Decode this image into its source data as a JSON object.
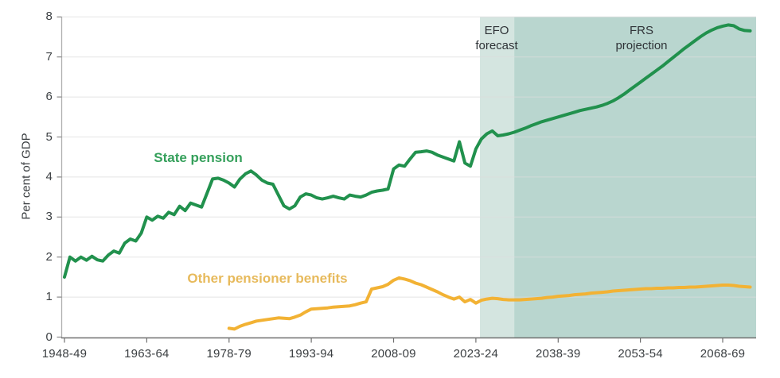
{
  "chart_data": {
    "type": "line",
    "ylabel": "Per cent of GDP",
    "ylim": [
      0,
      8
    ],
    "y_ticks": [
      0,
      1,
      2,
      3,
      4,
      5,
      6,
      7,
      8
    ],
    "x_ticks": [
      {
        "year": 1948,
        "label": "1948-49"
      },
      {
        "year": 1963,
        "label": "1963-64"
      },
      {
        "year": 1978,
        "label": "1978-79"
      },
      {
        "year": 1993,
        "label": "1993-94"
      },
      {
        "year": 2008,
        "label": "2008-09"
      },
      {
        "year": 2023,
        "label": "2023-24"
      },
      {
        "year": 2038,
        "label": "2038-39"
      },
      {
        "year": 2053,
        "label": "2053-54"
      },
      {
        "year": 2068,
        "label": "2068-69"
      }
    ],
    "x_range": [
      1948,
      2074.1
    ],
    "grid": "horizontal",
    "legend_position": "inline-labels",
    "bands": [
      {
        "name": "efo-forecast-band",
        "label": "EFO forecast",
        "start_year": 2023.75,
        "end_year": 2030,
        "color": "#d4e5e0"
      },
      {
        "name": "frs-projection-band",
        "label": "FRS projection",
        "start_year": 2030,
        "end_year": 2074.1,
        "color": "#b9d6cf"
      }
    ],
    "series": [
      {
        "name": "State pension",
        "color": "#21914d",
        "points": [
          [
            1948,
            1.5
          ],
          [
            1949,
            2.0
          ],
          [
            1950,
            1.9
          ],
          [
            1951,
            2.0
          ],
          [
            1952,
            1.92
          ],
          [
            1953,
            2.02
          ],
          [
            1954,
            1.93
          ],
          [
            1955,
            1.9
          ],
          [
            1956,
            2.05
          ],
          [
            1957,
            2.15
          ],
          [
            1958,
            2.1
          ],
          [
            1959,
            2.35
          ],
          [
            1960,
            2.45
          ],
          [
            1961,
            2.4
          ],
          [
            1962,
            2.6
          ],
          [
            1963,
            3.0
          ],
          [
            1964,
            2.92
          ],
          [
            1965,
            3.02
          ],
          [
            1966,
            2.97
          ],
          [
            1967,
            3.12
          ],
          [
            1968,
            3.06
          ],
          [
            1969,
            3.27
          ],
          [
            1970,
            3.16
          ],
          [
            1971,
            3.35
          ],
          [
            1972,
            3.3
          ],
          [
            1973,
            3.25
          ],
          [
            1974,
            3.6
          ],
          [
            1975,
            3.95
          ],
          [
            1976,
            3.97
          ],
          [
            1977,
            3.92
          ],
          [
            1978,
            3.85
          ],
          [
            1979,
            3.75
          ],
          [
            1980,
            3.95
          ],
          [
            1981,
            4.08
          ],
          [
            1982,
            4.15
          ],
          [
            1983,
            4.05
          ],
          [
            1984,
            3.92
          ],
          [
            1985,
            3.85
          ],
          [
            1986,
            3.82
          ],
          [
            1987,
            3.55
          ],
          [
            1988,
            3.28
          ],
          [
            1989,
            3.2
          ],
          [
            1990,
            3.28
          ],
          [
            1991,
            3.5
          ],
          [
            1992,
            3.58
          ],
          [
            1993,
            3.55
          ],
          [
            1994,
            3.48
          ],
          [
            1995,
            3.45
          ],
          [
            1996,
            3.48
          ],
          [
            1997,
            3.52
          ],
          [
            1998,
            3.48
          ],
          [
            1999,
            3.45
          ],
          [
            2000,
            3.55
          ],
          [
            2001,
            3.52
          ],
          [
            2002,
            3.5
          ],
          [
            2003,
            3.55
          ],
          [
            2004,
            3.62
          ],
          [
            2005,
            3.65
          ],
          [
            2006,
            3.67
          ],
          [
            2007,
            3.7
          ],
          [
            2008,
            4.2
          ],
          [
            2009,
            4.3
          ],
          [
            2010,
            4.27
          ],
          [
            2011,
            4.45
          ],
          [
            2012,
            4.62
          ],
          [
            2013,
            4.63
          ],
          [
            2014,
            4.65
          ],
          [
            2015,
            4.62
          ],
          [
            2016,
            4.55
          ],
          [
            2017,
            4.5
          ],
          [
            2018,
            4.45
          ],
          [
            2019,
            4.4
          ],
          [
            2020,
            4.88
          ],
          [
            2021,
            4.35
          ],
          [
            2022,
            4.27
          ],
          [
            2023,
            4.7
          ],
          [
            2024,
            4.95
          ],
          [
            2025,
            5.08
          ],
          [
            2026,
            5.15
          ],
          [
            2027,
            5.03
          ],
          [
            2028,
            5.05
          ],
          [
            2029,
            5.08
          ],
          [
            2030,
            5.12
          ],
          [
            2031,
            5.17
          ],
          [
            2032,
            5.22
          ],
          [
            2033,
            5.28
          ],
          [
            2034,
            5.33
          ],
          [
            2035,
            5.38
          ],
          [
            2036,
            5.42
          ],
          [
            2037,
            5.46
          ],
          [
            2038,
            5.5
          ],
          [
            2039,
            5.54
          ],
          [
            2040,
            5.58
          ],
          [
            2041,
            5.62
          ],
          [
            2042,
            5.66
          ],
          [
            2043,
            5.69
          ],
          [
            2044,
            5.72
          ],
          [
            2045,
            5.75
          ],
          [
            2046,
            5.79
          ],
          [
            2047,
            5.84
          ],
          [
            2048,
            5.9
          ],
          [
            2049,
            5.98
          ],
          [
            2050,
            6.07
          ],
          [
            2051,
            6.17
          ],
          [
            2052,
            6.27
          ],
          [
            2053,
            6.37
          ],
          [
            2054,
            6.47
          ],
          [
            2055,
            6.57
          ],
          [
            2056,
            6.67
          ],
          [
            2057,
            6.77
          ],
          [
            2058,
            6.88
          ],
          [
            2059,
            6.99
          ],
          [
            2060,
            7.1
          ],
          [
            2061,
            7.21
          ],
          [
            2062,
            7.31
          ],
          [
            2063,
            7.41
          ],
          [
            2064,
            7.51
          ],
          [
            2065,
            7.6
          ],
          [
            2066,
            7.67
          ],
          [
            2067,
            7.73
          ],
          [
            2068,
            7.77
          ],
          [
            2069,
            7.8
          ],
          [
            2070,
            7.78
          ],
          [
            2071,
            7.7
          ],
          [
            2072,
            7.66
          ],
          [
            2073,
            7.65
          ]
        ]
      },
      {
        "name": "Other pensioner benefits",
        "color": "#f2b234",
        "points": [
          [
            1978,
            0.22
          ],
          [
            1979,
            0.2
          ],
          [
            1980,
            0.27
          ],
          [
            1981,
            0.32
          ],
          [
            1982,
            0.36
          ],
          [
            1983,
            0.4
          ],
          [
            1984,
            0.42
          ],
          [
            1985,
            0.44
          ],
          [
            1986,
            0.46
          ],
          [
            1987,
            0.48
          ],
          [
            1988,
            0.47
          ],
          [
            1989,
            0.46
          ],
          [
            1990,
            0.5
          ],
          [
            1991,
            0.55
          ],
          [
            1992,
            0.63
          ],
          [
            1993,
            0.7
          ],
          [
            1994,
            0.71
          ],
          [
            1995,
            0.72
          ],
          [
            1996,
            0.73
          ],
          [
            1997,
            0.75
          ],
          [
            1998,
            0.76
          ],
          [
            1999,
            0.77
          ],
          [
            2000,
            0.78
          ],
          [
            2001,
            0.81
          ],
          [
            2002,
            0.85
          ],
          [
            2003,
            0.88
          ],
          [
            2004,
            1.2
          ],
          [
            2005,
            1.23
          ],
          [
            2006,
            1.26
          ],
          [
            2007,
            1.32
          ],
          [
            2008,
            1.42
          ],
          [
            2009,
            1.48
          ],
          [
            2010,
            1.45
          ],
          [
            2011,
            1.41
          ],
          [
            2012,
            1.35
          ],
          [
            2013,
            1.31
          ],
          [
            2014,
            1.25
          ],
          [
            2015,
            1.19
          ],
          [
            2016,
            1.13
          ],
          [
            2017,
            1.06
          ],
          [
            2018,
            1.0
          ],
          [
            2019,
            0.95
          ],
          [
            2020,
            1.0
          ],
          [
            2021,
            0.88
          ],
          [
            2022,
            0.94
          ],
          [
            2023,
            0.85
          ],
          [
            2024,
            0.92
          ],
          [
            2025,
            0.95
          ],
          [
            2026,
            0.97
          ],
          [
            2027,
            0.96
          ],
          [
            2028,
            0.94
          ],
          [
            2029,
            0.93
          ],
          [
            2030,
            0.93
          ],
          [
            2031,
            0.93
          ],
          [
            2032,
            0.94
          ],
          [
            2033,
            0.95
          ],
          [
            2034,
            0.96
          ],
          [
            2035,
            0.97
          ],
          [
            2036,
            0.99
          ],
          [
            2037,
            1.0
          ],
          [
            2038,
            1.02
          ],
          [
            2039,
            1.03
          ],
          [
            2040,
            1.04
          ],
          [
            2041,
            1.06
          ],
          [
            2042,
            1.07
          ],
          [
            2043,
            1.08
          ],
          [
            2044,
            1.1
          ],
          [
            2045,
            1.11
          ],
          [
            2046,
            1.12
          ],
          [
            2047,
            1.13
          ],
          [
            2048,
            1.15
          ],
          [
            2049,
            1.16
          ],
          [
            2050,
            1.17
          ],
          [
            2051,
            1.18
          ],
          [
            2052,
            1.19
          ],
          [
            2053,
            1.2
          ],
          [
            2054,
            1.21
          ],
          [
            2055,
            1.21
          ],
          [
            2056,
            1.22
          ],
          [
            2057,
            1.22
          ],
          [
            2058,
            1.23
          ],
          [
            2059,
            1.23
          ],
          [
            2060,
            1.24
          ],
          [
            2061,
            1.24
          ],
          [
            2062,
            1.25
          ],
          [
            2063,
            1.25
          ],
          [
            2064,
            1.26
          ],
          [
            2065,
            1.27
          ],
          [
            2066,
            1.28
          ],
          [
            2067,
            1.29
          ],
          [
            2068,
            1.3
          ],
          [
            2069,
            1.3
          ],
          [
            2070,
            1.29
          ],
          [
            2071,
            1.27
          ],
          [
            2072,
            1.26
          ],
          [
            2073,
            1.25
          ]
        ]
      }
    ]
  },
  "annotations": {
    "y_axis_title": "Per cent of GDP",
    "state_pension_label": "State pension",
    "other_benefits_label": "Other pensioner benefits",
    "efo_line1": "EFO",
    "efo_line2": "forecast",
    "frs_line1": "FRS",
    "frs_line2": "projection"
  }
}
